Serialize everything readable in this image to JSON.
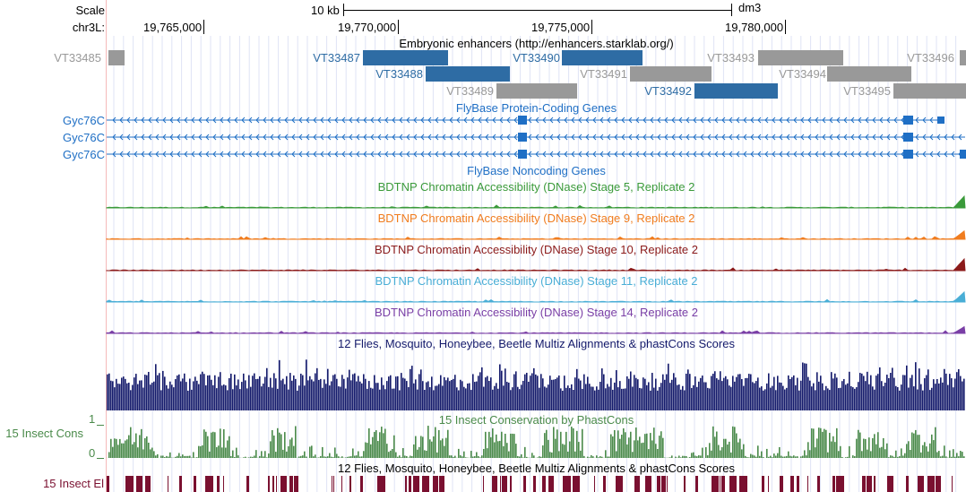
{
  "header": {
    "scale_label": "Scale",
    "chrom_label": "chr3L:",
    "scale_bar_label": "10 kb",
    "assembly": "dm3",
    "ruler_ticks": [
      "19,765,000",
      "19,770,000",
      "19,775,000",
      "19,780,000"
    ]
  },
  "colors": {
    "enhancer_blue": "#2e6ca4",
    "enhancer_gray": "#999999",
    "gene_blue": "#1f6fc5",
    "stage5": "#3a9a3a",
    "stage9": "#f07c1e",
    "stage10": "#8b1a1a",
    "stage11": "#49aed6",
    "stage14": "#7a3fa6",
    "multiz": "#141a6b",
    "phastcons": "#4a8a4a",
    "elements": "#7a1030",
    "guide": "#f5b9b9"
  },
  "tracks": {
    "enhancers": {
      "title": "Embryonic enhancers (http://enhancers.starklab.org/)",
      "items": [
        {
          "name": "VT33485",
          "color": "gray"
        },
        {
          "name": "VT33487",
          "color": "blue"
        },
        {
          "name": "VT33488",
          "color": "blue"
        },
        {
          "name": "VT33489",
          "color": "gray"
        },
        {
          "name": "VT33490",
          "color": "blue"
        },
        {
          "name": "VT33491",
          "color": "gray"
        },
        {
          "name": "VT33492",
          "color": "blue"
        },
        {
          "name": "VT33493",
          "color": "gray"
        },
        {
          "name": "VT33494",
          "color": "gray"
        },
        {
          "name": "VT33495",
          "color": "gray"
        },
        {
          "name": "VT33496",
          "color": "gray"
        }
      ]
    },
    "protein_coding": {
      "title": "FlyBase Protein-Coding Genes",
      "genes": [
        "Gyc76C",
        "Gyc76C",
        "Gyc76C"
      ]
    },
    "noncoding": {
      "title": "FlyBase Noncoding Genes"
    },
    "dnase": [
      {
        "title": "BDTNP Chromatin Accessibility (DNase) Stage 5, Replicate 2",
        "color_key": "stage5"
      },
      {
        "title": "BDTNP Chromatin Accessibility (DNase) Stage 9, Replicate 2",
        "color_key": "stage9"
      },
      {
        "title": "BDTNP Chromatin Accessibility (DNase) Stage 10, Replicate 2",
        "color_key": "stage10"
      },
      {
        "title": "BDTNP Chromatin Accessibility (DNase) Stage 11, Replicate 2",
        "color_key": "stage11"
      },
      {
        "title": "BDTNP Chromatin Accessibility (DNase) Stage 14, Replicate 2",
        "color_key": "stage14"
      }
    ],
    "multiz": {
      "title": "12 Flies, Mosquito, Honeybee, Beetle Multiz Alignments & phastCons Scores"
    },
    "phastcons": {
      "title": "15 Insect Conservation by PhastCons",
      "left_label": "15 Insect Cons",
      "ymax": "1",
      "ymin": "0"
    },
    "elements": {
      "title": "12 Flies, Mosquito, Honeybee, Beetle Multiz Alignments & phastCons Scores",
      "left_label": "15 Insect El"
    }
  }
}
